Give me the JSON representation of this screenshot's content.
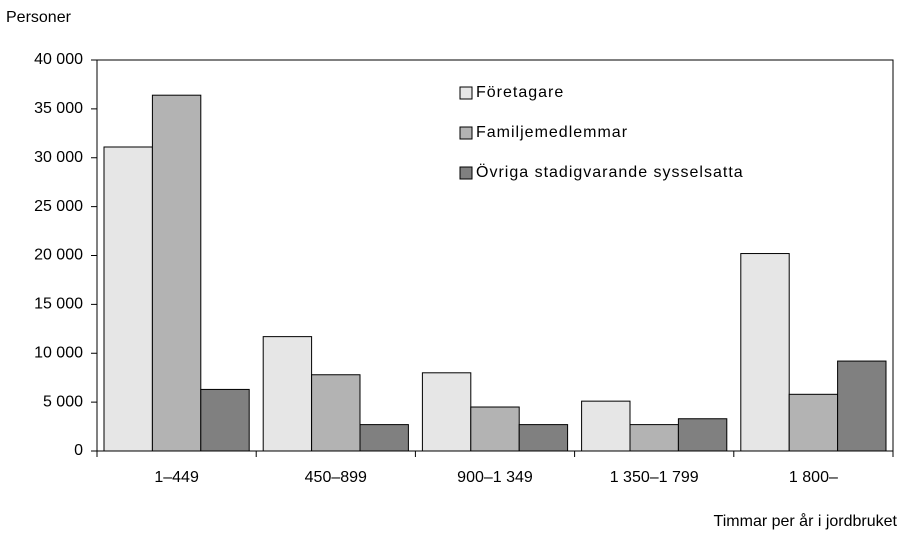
{
  "chart_data": {
    "type": "bar",
    "y_label": "Personer",
    "x_label": "Timmar per år i jordbruket",
    "categories": [
      "1–449",
      "450–899",
      "900–1 349",
      "1 350–1 799",
      "1 800–"
    ],
    "series": [
      {
        "name": "Företagare",
        "color": "#e6e6e6",
        "values": [
          31100,
          11700,
          8000,
          5100,
          20200
        ]
      },
      {
        "name": "Familjemedlemmar",
        "color": "#b3b3b3",
        "values": [
          36400,
          7800,
          4500,
          2700,
          5800
        ]
      },
      {
        "name": "Övriga stadigvarande sysselsatta",
        "color": "#808080",
        "values": [
          6300,
          2700,
          2700,
          3300,
          9200
        ]
      }
    ],
    "ylim": [
      0,
      40000
    ],
    "yticks": [
      0,
      {
        "value": 5000,
        "label": "5 000"
      },
      {
        "value": 10000,
        "label": "10 000"
      },
      {
        "value": 15000,
        "label": "15 000"
      },
      {
        "value": 20000,
        "label": "20 000"
      },
      {
        "value": 25000,
        "label": "25 000"
      },
      {
        "value": 30000,
        "label": "30 000"
      },
      {
        "value": 35000,
        "label": "35 000"
      },
      {
        "value": 40000,
        "label": "40 000"
      }
    ],
    "grid": false,
    "legend": "top-right"
  }
}
